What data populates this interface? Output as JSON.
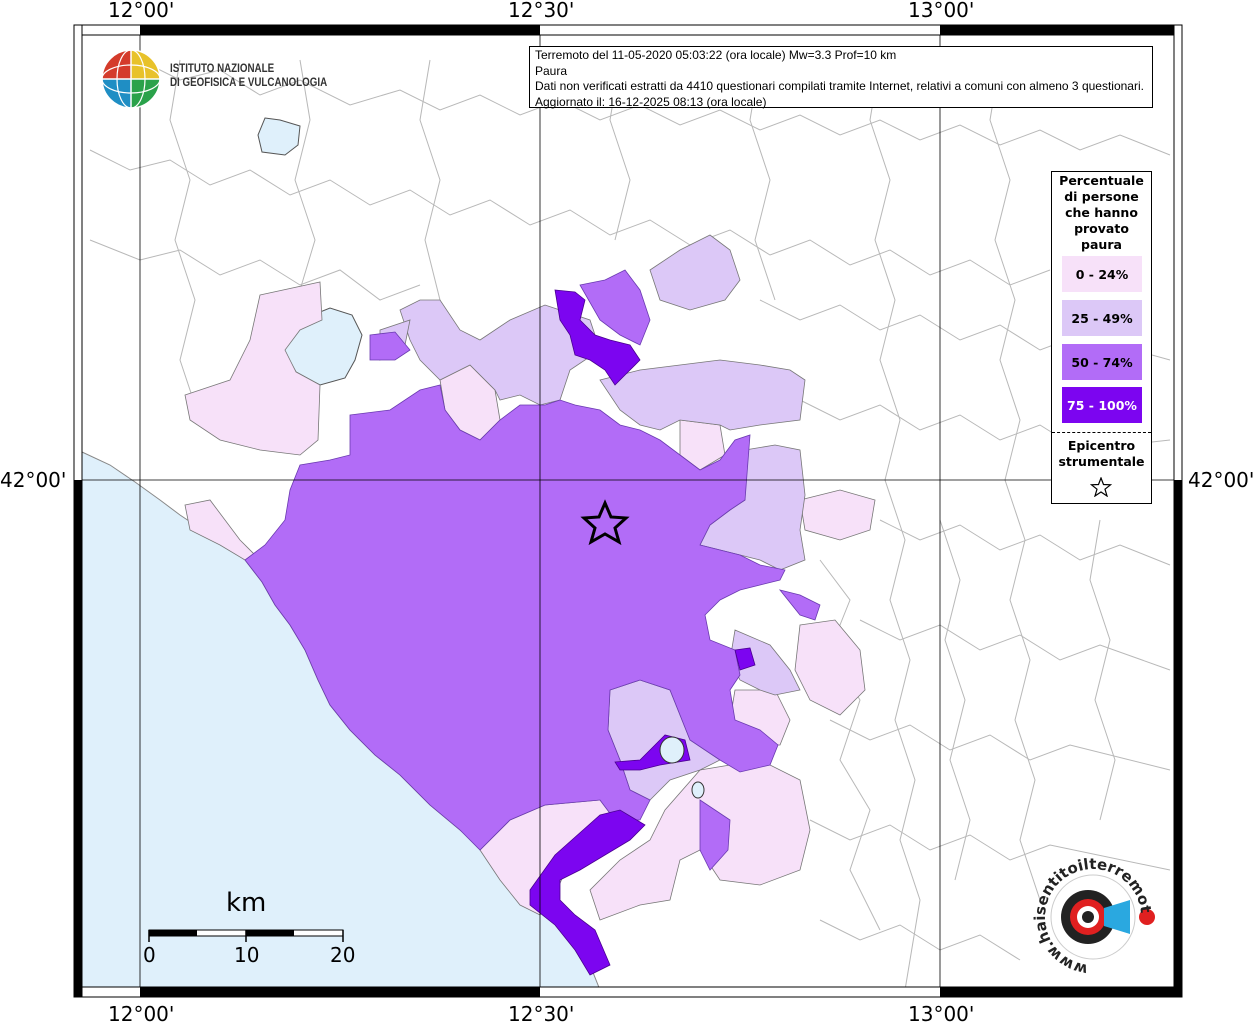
{
  "info": {
    "line1": "Terremoto del 11-05-2020 05:03:22 (ora locale) Mw=3.3 Prof=10 km",
    "line2": "Paura",
    "line3": "Dati non verificati estratti da 4410 questionari compilati tramite Internet, relativi a comuni con almeno 3 questionari.",
    "line4": "Aggiornato il: 16-12-2025 08:13 (ora locale)"
  },
  "logo": {
    "line1": "ISTITUTO NAZIONALE",
    "line2": "DI GEOFISICA E VULCANOLOGIA"
  },
  "axes": {
    "top": [
      "12°00'",
      "12°30'",
      "13°00'"
    ],
    "bottom": [
      "12°00'",
      "12°30'",
      "13°00'"
    ],
    "left": "42°00'",
    "right": "42°00'"
  },
  "legend": {
    "title": [
      "Percentuale",
      "di persone",
      "che hanno",
      "provato",
      "paura"
    ],
    "classes": [
      {
        "label": "0 - 24%",
        "color": "#f7e1f9"
      },
      {
        "label": "25 - 49%",
        "color": "#dcc8f7"
      },
      {
        "label": "50 - 74%",
        "color": "#b26cf7"
      },
      {
        "label": "75 - 100%",
        "color": "#7c05f0"
      }
    ],
    "epicenter_label": [
      "Epicentro",
      "strumentale"
    ],
    "epicenter_icon": "star-icon"
  },
  "scale": {
    "title": "km",
    "ticks": [
      "0",
      "10",
      "20"
    ]
  },
  "watermark": {
    "text": "www.haisentitoilterremoto.it",
    "icon": "loudspeaker-target-icon"
  },
  "colors": {
    "sea": "#dff0fb",
    "land": "#ffffff",
    "borders": "#b8b8b8"
  }
}
